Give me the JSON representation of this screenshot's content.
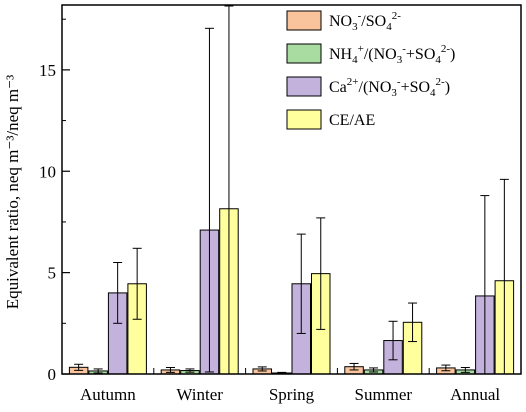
{
  "chart_data": {
    "type": "bar",
    "ylabel": "Equivalent ratio, neq m⁻³/neq m⁻³",
    "ylim": [
      0,
      18.2
    ],
    "y_ticks": [
      0,
      5,
      10,
      15
    ],
    "categories": [
      "Autumn",
      "Winter",
      "Spring",
      "Summer",
      "Annual"
    ],
    "legend_position": "top-right",
    "series": [
      {
        "name": "NO3-/SO42-",
        "color": "#f9c39b",
        "values": [
          0.33,
          0.2,
          0.25,
          0.36,
          0.3
        ],
        "err_low": [
          0.15,
          0.12,
          0.1,
          0.16,
          0.14
        ],
        "err_high": [
          0.15,
          0.12,
          0.1,
          0.16,
          0.14
        ]
      },
      {
        "name": "NH4+/(NO3-+SO42-)",
        "color": "#a9dca1",
        "values": [
          0.15,
          0.17,
          0.05,
          0.2,
          0.2
        ],
        "err_low": [
          0.1,
          0.08,
          0.03,
          0.1,
          0.12
        ],
        "err_high": [
          0.1,
          0.08,
          0.03,
          0.1,
          0.12
        ]
      },
      {
        "name": "Ca2+/(NO3-+SO42-)",
        "color": "#c2b2dc",
        "values": [
          4.0,
          7.1,
          4.45,
          1.65,
          3.85
        ],
        "err_low": [
          1.5,
          7.0,
          2.45,
          0.95,
          3.85
        ],
        "err_high": [
          1.5,
          9.95,
          2.45,
          0.95,
          4.95
        ]
      },
      {
        "name": "CE/AE",
        "color": "#ffff9e",
        "values": [
          4.45,
          8.15,
          4.95,
          2.55,
          4.6
        ],
        "err_low": [
          1.75,
          8.15,
          2.75,
          0.95,
          4.6
        ],
        "err_high": [
          1.75,
          10.0,
          2.75,
          0.95,
          5.0
        ]
      }
    ]
  },
  "legend_labels": [
    [
      {
        "t": "NO"
      },
      {
        "t": "3",
        "s": "sub"
      },
      {
        "t": "-",
        "s": "sup"
      },
      {
        "t": "/SO"
      },
      {
        "t": "4",
        "s": "sub"
      },
      {
        "t": "2-",
        "s": "sup"
      }
    ],
    [
      {
        "t": "NH"
      },
      {
        "t": "4",
        "s": "sub"
      },
      {
        "t": "+",
        "s": "sup"
      },
      {
        "t": "/(NO"
      },
      {
        "t": "3",
        "s": "sub"
      },
      {
        "t": "-",
        "s": "sup"
      },
      {
        "t": "+SO"
      },
      {
        "t": "4",
        "s": "sub"
      },
      {
        "t": "2-",
        "s": "sup"
      },
      {
        "t": ")"
      }
    ],
    [
      {
        "t": "Ca"
      },
      {
        "t": "2+",
        "s": "sup"
      },
      {
        "t": "/(NO"
      },
      {
        "t": "3",
        "s": "sub"
      },
      {
        "t": "-",
        "s": "sup"
      },
      {
        "t": "+SO"
      },
      {
        "t": "4",
        "s": "sub"
      },
      {
        "t": "2-",
        "s": "sup"
      },
      {
        "t": ")"
      }
    ],
    [
      {
        "t": "CE/AE"
      }
    ]
  ]
}
